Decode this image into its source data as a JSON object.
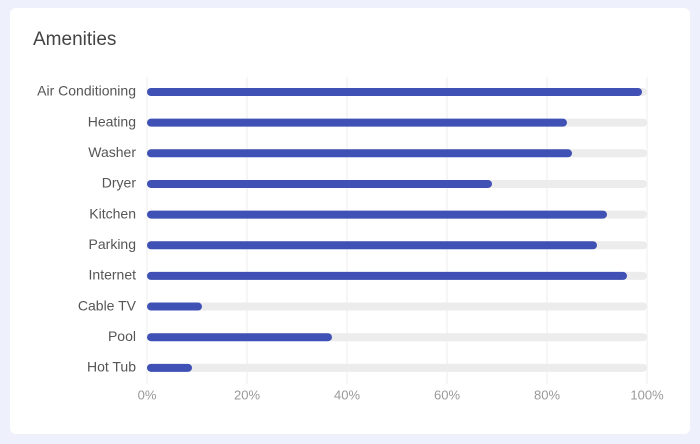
{
  "chart_data": {
    "type": "bar",
    "orientation": "horizontal",
    "title": "Amenities",
    "categories": [
      "Air Conditioning",
      "Heating",
      "Washer",
      "Dryer",
      "Kitchen",
      "Parking",
      "Internet",
      "Cable TV",
      "Pool",
      "Hot Tub"
    ],
    "values": [
      99,
      84,
      85,
      69,
      92,
      90,
      96,
      11,
      37,
      9
    ],
    "color": "#3f51b5",
    "xlim": [
      0,
      100
    ],
    "xticks": [
      {
        "value": 0,
        "label": "0%"
      },
      {
        "value": 20,
        "label": "20%"
      },
      {
        "value": 40,
        "label": "40%"
      },
      {
        "value": 60,
        "label": "60%"
      },
      {
        "value": 80,
        "label": "80%"
      },
      {
        "value": 100,
        "label": "100%"
      }
    ],
    "grid": true
  }
}
